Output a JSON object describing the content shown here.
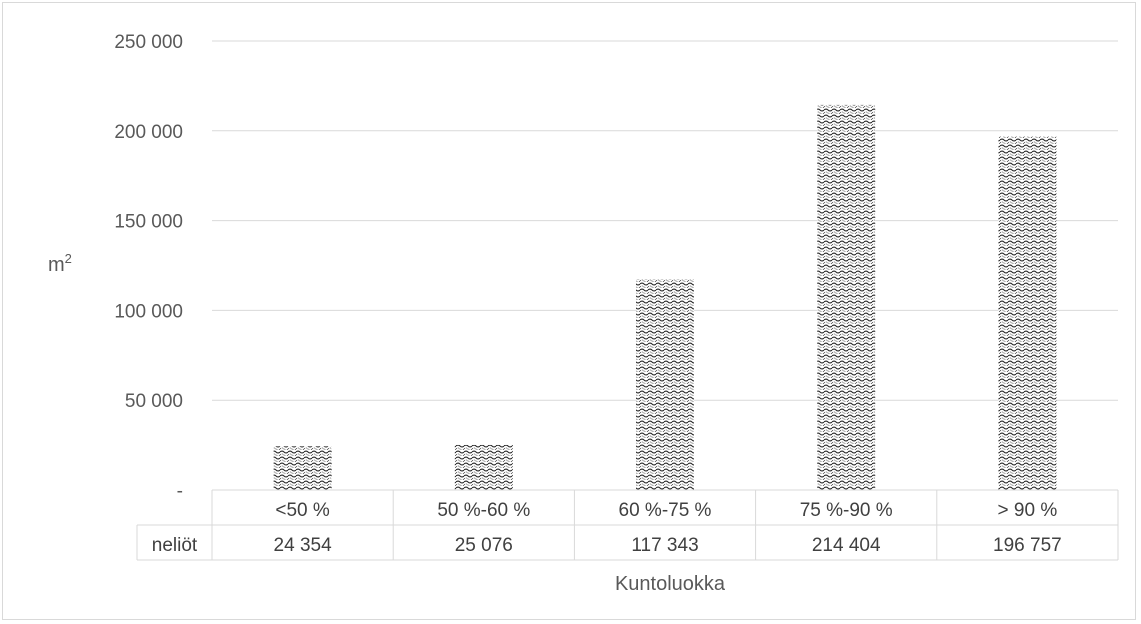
{
  "chart_data": {
    "type": "bar",
    "categories": [
      "<50 %",
      "50 %-60 %",
      "60 %-75 %",
      "75 %-90 %",
      "> 90 %"
    ],
    "series": [
      {
        "name": "neliöt",
        "values": [
          24354,
          25076,
          117343,
          214404,
          196757
        ]
      }
    ],
    "data_table": {
      "row_label": "neliöt",
      "values_text": [
        "24 354",
        "25 076",
        "117 343",
        "214 404",
        "196 757"
      ]
    },
    "title": "",
    "xlabel": "Kuntoluokka",
    "ylabel_base": "m",
    "ylabel_superscript": "2",
    "ylim": [
      0,
      250000
    ],
    "yticks": [
      0,
      50000,
      100000,
      150000,
      200000,
      250000
    ],
    "ytick_labels": [
      "-",
      "50 000",
      "100 000",
      "150 000",
      "200 000",
      "250 000"
    ],
    "grid": true,
    "legend": "none",
    "bar_pattern": "dotted-wave",
    "colors": {
      "gridline": "#d9d9d9",
      "bar_ink": "#262626",
      "text": "#595959"
    }
  }
}
